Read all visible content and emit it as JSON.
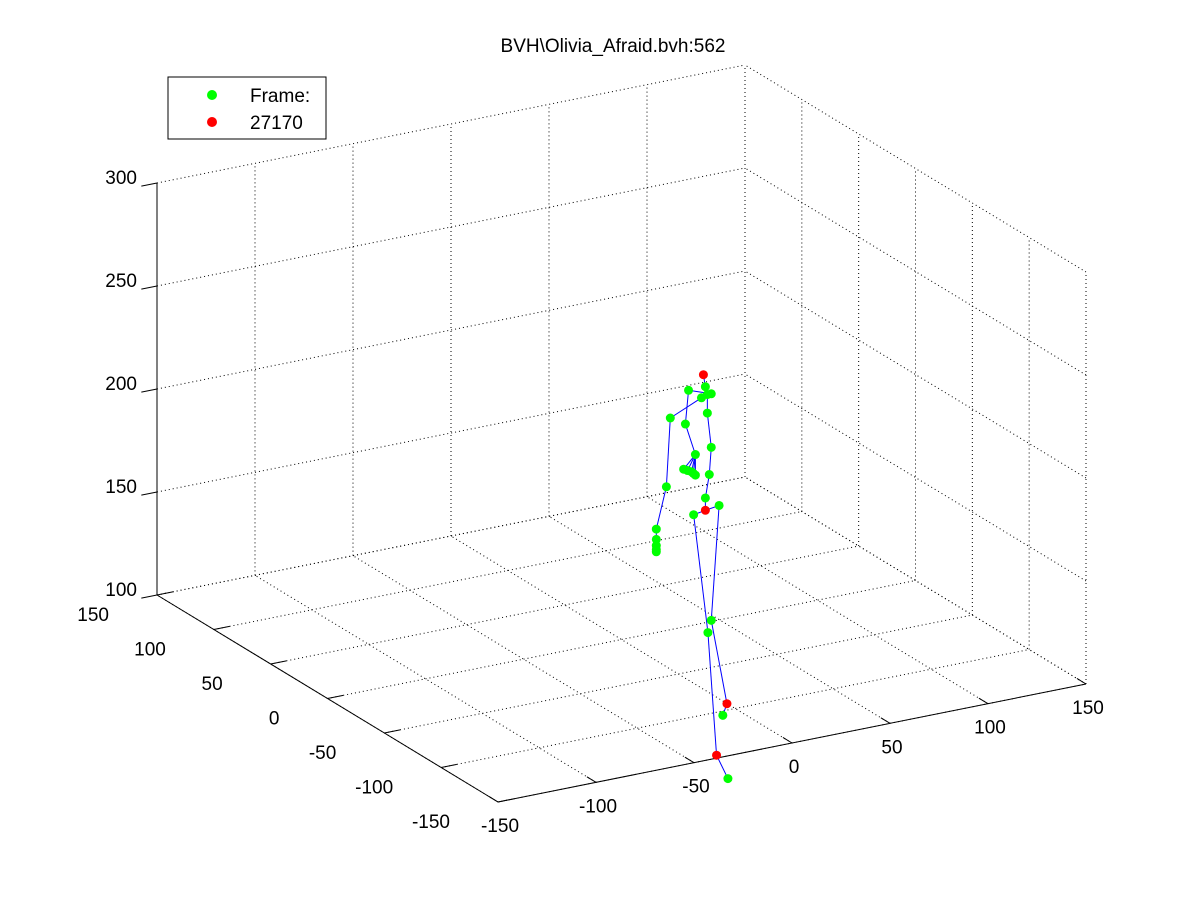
{
  "chart_data": {
    "type": "scatter",
    "title": "BVH\\Olivia_Afraid.bvh:562",
    "xlabel": "",
    "ylabel": "",
    "zlabel": "",
    "x_ticks": [
      "-150",
      "-100",
      "-50",
      "0",
      "50",
      "100",
      "150"
    ],
    "y_ticks": [
      "-150",
      "-100",
      "-50",
      "0",
      "50",
      "100",
      "150"
    ],
    "z_ticks": [
      "100",
      "150",
      "200",
      "250",
      "300"
    ],
    "xlim": [
      -150,
      150
    ],
    "ylim": [
      -150,
      150
    ],
    "zlim": [
      100,
      300
    ],
    "grid": true,
    "projection": "3d",
    "legend": {
      "placement": "top-left",
      "entries": [
        {
          "label": "Frame:",
          "color": "#00ff00"
        },
        {
          "label": "27170",
          "color": "#ff0000"
        }
      ]
    },
    "colors": {
      "joint": "#00ff00",
      "end_effector": "#ff0000",
      "bone": "#0000ff",
      "grid": "#000000"
    },
    "joints": [
      {
        "id": "head_end",
        "type": "end",
        "x": 36,
        "y": -10,
        "z": 225
      },
      {
        "id": "head",
        "type": "joint",
        "x": 37,
        "y": -10,
        "z": 219
      },
      {
        "id": "neck",
        "type": "joint",
        "x": 38,
        "y": -10,
        "z": 215
      },
      {
        "id": "l_collar",
        "type": "joint",
        "x": 35,
        "y": -10,
        "z": 214
      },
      {
        "id": "l_shoulder",
        "type": "joint",
        "x": 22,
        "y": -5,
        "z": 205
      },
      {
        "id": "l_elbow",
        "type": "joint",
        "x": 20,
        "y": -5,
        "z": 172
      },
      {
        "id": "l_wrist",
        "type": "joint",
        "x": 5,
        "y": -22,
        "z": 160
      },
      {
        "id": "l_hand1",
        "type": "joint",
        "x": 5,
        "y": -22,
        "z": 155
      },
      {
        "id": "l_hand2",
        "type": "joint",
        "x": 5,
        "y": -22,
        "z": 152
      },
      {
        "id": "l_hand3",
        "type": "joint",
        "x": 5,
        "y": -22,
        "z": 150
      },
      {
        "id": "l_hand4",
        "type": "joint",
        "x": 5,
        "y": -22,
        "z": 149
      },
      {
        "id": "r_collar",
        "type": "joint",
        "x": 40,
        "y": -10,
        "z": 215
      },
      {
        "id": "r_shoulder",
        "type": "joint",
        "x": 40,
        "y": 10,
        "z": 210
      },
      {
        "id": "r_elbow",
        "type": "joint",
        "x": 50,
        "y": 30,
        "z": 185
      },
      {
        "id": "r_wrist",
        "type": "joint",
        "x": 58,
        "y": 35,
        "z": 167
      },
      {
        "id": "r_hand1",
        "type": "joint",
        "x": 52,
        "y": 35,
        "z": 161
      },
      {
        "id": "r_hand2",
        "type": "joint",
        "x": 54,
        "y": 35,
        "z": 160
      },
      {
        "id": "r_hand3",
        "type": "joint",
        "x": 56,
        "y": 35,
        "z": 159
      },
      {
        "id": "r_hand4",
        "type": "joint",
        "x": 57,
        "y": 35,
        "z": 158
      },
      {
        "id": "r_hand5",
        "type": "joint",
        "x": 58,
        "y": 35,
        "z": 157
      },
      {
        "id": "spine3",
        "type": "joint",
        "x": 38,
        "y": -10,
        "z": 206
      },
      {
        "id": "spine2",
        "type": "joint",
        "x": 40,
        "y": -10,
        "z": 189
      },
      {
        "id": "spine1",
        "type": "joint",
        "x": 39,
        "y": -10,
        "z": 176
      },
      {
        "id": "spine0",
        "type": "joint",
        "x": 37,
        "y": -10,
        "z": 165
      },
      {
        "id": "hips",
        "type": "end",
        "x": 37,
        "y": -10,
        "z": 159
      },
      {
        "id": "l_hip",
        "type": "joint",
        "x": 31,
        "y": -10,
        "z": 158
      },
      {
        "id": "l_knee",
        "type": "joint",
        "x": 18,
        "y": -45,
        "z": 115
      },
      {
        "id": "l_ankle",
        "type": "end",
        "x": 5,
        "y": -75,
        "z": 68
      },
      {
        "id": "l_toe",
        "type": "joint",
        "x": 5,
        "y": -85,
        "z": 60
      },
      {
        "id": "r_hip",
        "type": "joint",
        "x": 44,
        "y": -10,
        "z": 160
      },
      {
        "id": "r_knee",
        "type": "joint",
        "x": 40,
        "y": -10,
        "z": 105
      },
      {
        "id": "r_ankle",
        "type": "end",
        "x": 48,
        "y": -10,
        "z": 63
      },
      {
        "id": "r_toe",
        "type": "joint",
        "x": 43,
        "y": -15,
        "z": 60
      }
    ],
    "bones": [
      [
        "hips",
        "spine0"
      ],
      [
        "spine0",
        "spine1"
      ],
      [
        "spine1",
        "spine2"
      ],
      [
        "spine2",
        "spine3"
      ],
      [
        "spine3",
        "neck"
      ],
      [
        "neck",
        "head"
      ],
      [
        "head",
        "head_end"
      ],
      [
        "neck",
        "l_collar"
      ],
      [
        "l_collar",
        "l_shoulder"
      ],
      [
        "l_shoulder",
        "l_elbow"
      ],
      [
        "l_elbow",
        "l_wrist"
      ],
      [
        "l_wrist",
        "l_hand1"
      ],
      [
        "l_hand1",
        "l_hand2"
      ],
      [
        "l_hand2",
        "l_hand3"
      ],
      [
        "l_hand3",
        "l_hand4"
      ],
      [
        "neck",
        "r_collar"
      ],
      [
        "r_collar",
        "r_shoulder"
      ],
      [
        "r_shoulder",
        "r_elbow"
      ],
      [
        "r_elbow",
        "r_wrist"
      ],
      [
        "r_wrist",
        "r_hand1"
      ],
      [
        "r_wrist",
        "r_hand2"
      ],
      [
        "r_wrist",
        "r_hand3"
      ],
      [
        "r_wrist",
        "r_hand4"
      ],
      [
        "r_wrist",
        "r_hand5"
      ],
      [
        "hips",
        "l_hip"
      ],
      [
        "l_hip",
        "l_knee"
      ],
      [
        "l_knee",
        "l_ankle"
      ],
      [
        "l_ankle",
        "l_toe"
      ],
      [
        "hips",
        "r_hip"
      ],
      [
        "r_hip",
        "r_knee"
      ],
      [
        "r_knee",
        "r_ankle"
      ],
      [
        "r_ankle",
        "r_toe"
      ]
    ]
  }
}
